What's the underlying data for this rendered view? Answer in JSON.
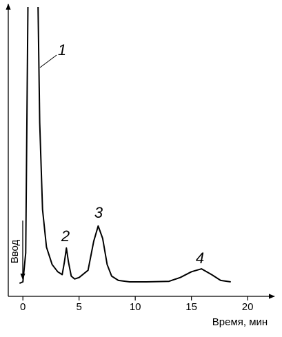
{
  "chart_data": {
    "type": "line",
    "xlabel": "Время, мин",
    "injection_label": "Ввод",
    "peak_labels": [
      "1",
      "2",
      "3",
      "4"
    ],
    "x": [
      -0.3,
      0,
      0.25,
      0.45,
      0.9,
      1.35,
      1.5,
      1.75,
      2.1,
      2.6,
      3.1,
      3.5,
      3.7,
      3.87,
      4.05,
      4.3,
      4.6,
      5.0,
      5.8,
      6.3,
      6.7,
      7.1,
      7.5,
      7.9,
      8.5,
      9.5,
      11,
      13,
      14,
      15,
      15.9,
      16.8,
      17.6,
      18.5
    ],
    "series": [
      {
        "color": "#000000",
        "values": [
          4.5,
          5,
          15,
          100,
          null,
          100,
          60,
          30,
          17,
          11,
          8.5,
          7.5,
          12,
          16.7,
          12,
          7,
          6,
          6.5,
          9,
          19,
          24.3,
          20,
          11,
          7,
          5.5,
          5,
          5,
          5.2,
          6.5,
          8.5,
          9.5,
          7.5,
          5.5,
          5
        ]
      }
    ],
    "xlim": [
      -1.3,
      22.2
    ],
    "ylim": [
      0,
      100
    ],
    "xticks": [
      0,
      5,
      10,
      15,
      20
    ]
  }
}
